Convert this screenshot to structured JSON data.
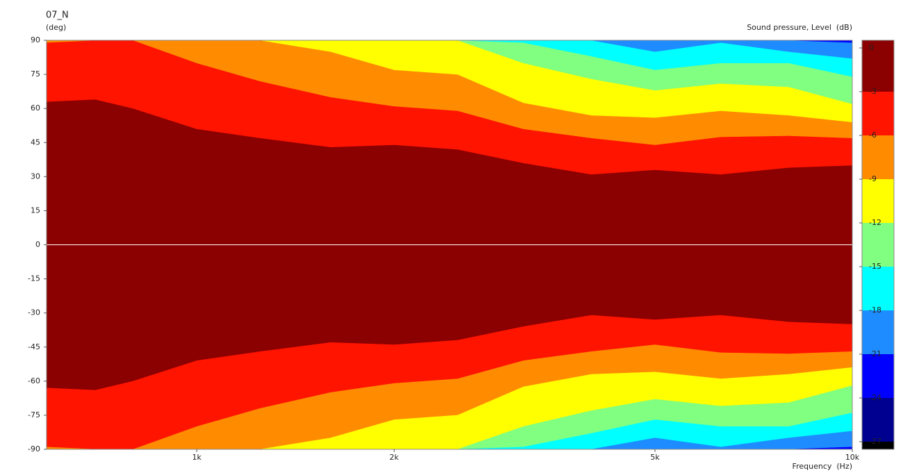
{
  "chart_data": {
    "type": "contour",
    "title": "07_N",
    "y_label": "(deg)",
    "x_label": "Frequency  (Hz)",
    "colorbar_label": "Sound pressure, Level  (dB)",
    "x_log": true,
    "xlim": [
      590,
      10000
    ],
    "ylim": [
      -90,
      90
    ],
    "xticks": [
      {
        "value": 1000,
        "label": "1k"
      },
      {
        "value": 2000,
        "label": "2k"
      },
      {
        "value": 5000,
        "label": "5k"
      },
      {
        "value": 10000,
        "label": "10k"
      }
    ],
    "yticks": [
      90,
      75,
      60,
      45,
      30,
      15,
      0,
      -15,
      -30,
      -45,
      -60,
      -75,
      -90
    ],
    "colorbar": {
      "levels": [
        0,
        -3,
        -6,
        -9,
        -12,
        -15,
        -18,
        -21,
        -24,
        -27
      ],
      "colors": [
        "#8b0000",
        "#ff1400",
        "#ff8c00",
        "#ffff00",
        "#80ff80",
        "#00ffff",
        "#1e8cff",
        "#0000ff",
        "#000090",
        "#000000"
      ]
    },
    "x": [
      590,
      700,
      800,
      1000,
      1250,
      1600,
      2000,
      2500,
      3150,
      4000,
      5000,
      6300,
      8000,
      10000
    ],
    "series": [
      {
        "values": [
          63,
          64,
          60,
          51,
          47,
          43,
          44,
          42,
          36,
          31,
          33,
          31,
          34,
          35
        ]
      },
      {
        "values": [
          89,
          90,
          90,
          80,
          72,
          65,
          61,
          59,
          51,
          47,
          44,
          47.5,
          48,
          47
        ]
      },
      {
        "values": [
          90,
          90,
          90,
          90,
          90,
          85,
          77,
          75,
          62.5,
          57,
          56,
          59,
          57,
          54
        ]
      },
      {
        "values": [
          90,
          90,
          90,
          90,
          90,
          90,
          90,
          90,
          80,
          73,
          68,
          71,
          69.5,
          62
        ]
      },
      {
        "values": [
          90,
          90,
          90,
          90,
          90,
          90,
          90,
          90,
          89,
          83,
          77,
          80,
          80,
          74
        ]
      },
      {
        "values": [
          90,
          90,
          90,
          90,
          90,
          90,
          90,
          90,
          90,
          90,
          85,
          89,
          85,
          82
        ]
      },
      {
        "values": [
          90,
          90,
          90,
          90,
          90,
          90,
          90,
          90,
          90,
          90,
          90,
          90,
          90,
          89
        ]
      }
    ]
  }
}
